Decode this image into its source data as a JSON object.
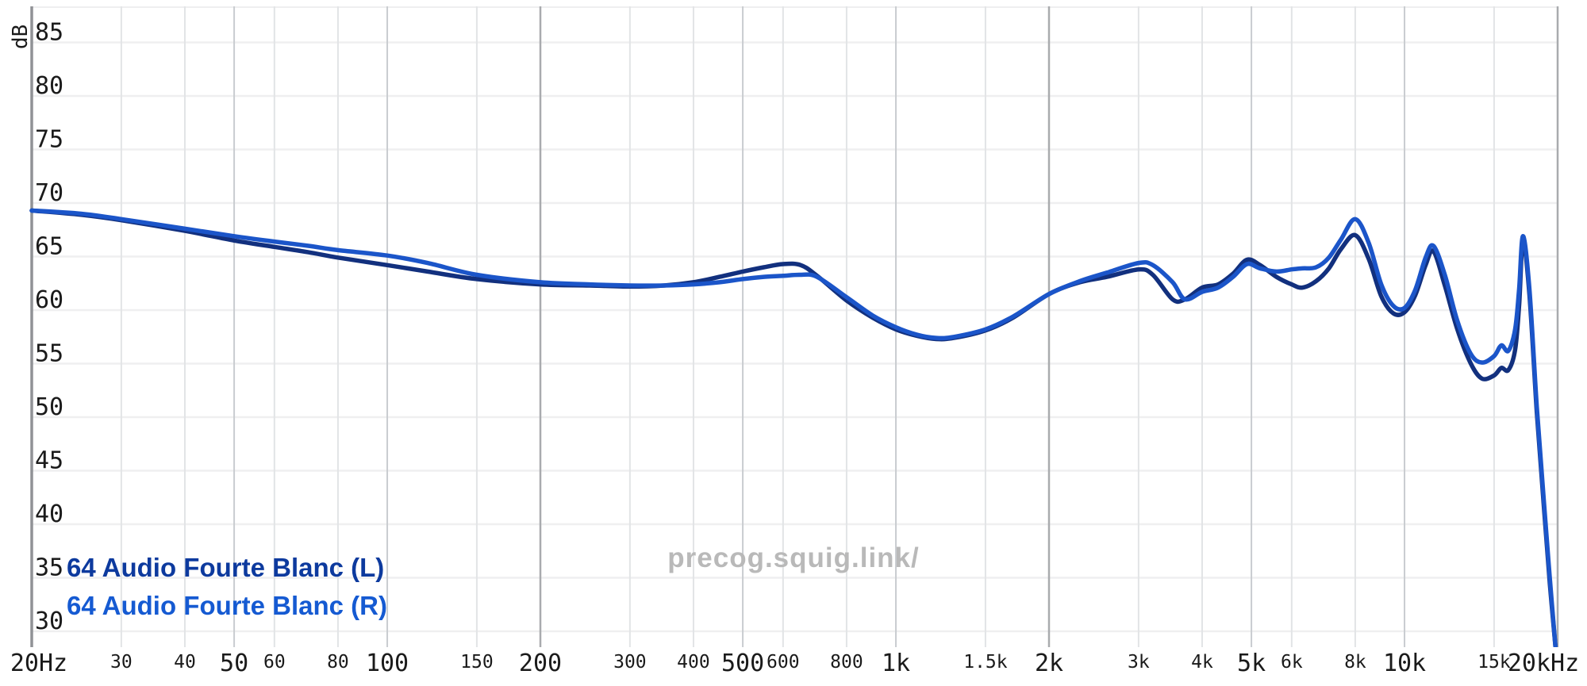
{
  "watermark": {
    "text": "precog.squig.link/",
    "color": "#b9b9b9"
  },
  "legend": {
    "items": [
      {
        "label": "64 Audio Fourte Blanc (L)",
        "color": "#0d3a9e"
      },
      {
        "label": "64 Audio Fourte Blanc (R)",
        "color": "#155ad2"
      }
    ]
  },
  "y_axis": {
    "unit": "dB",
    "ticks": [
      85,
      80,
      75,
      70,
      65,
      60,
      55,
      50,
      45,
      40,
      35,
      30
    ]
  },
  "x_axis": {
    "ticks": [
      {
        "f": 20,
        "label": "20Hz",
        "size": "major"
      },
      {
        "f": 30,
        "label": "30",
        "size": "minor"
      },
      {
        "f": 40,
        "label": "40",
        "size": "minor"
      },
      {
        "f": 50,
        "label": "50",
        "size": "major"
      },
      {
        "f": 60,
        "label": "60",
        "size": "minor"
      },
      {
        "f": 80,
        "label": "80",
        "size": "minor"
      },
      {
        "f": 100,
        "label": "100",
        "size": "major"
      },
      {
        "f": 150,
        "label": "150",
        "size": "minor"
      },
      {
        "f": 200,
        "label": "200",
        "size": "major"
      },
      {
        "f": 300,
        "label": "300",
        "size": "minor"
      },
      {
        "f": 400,
        "label": "400",
        "size": "minor"
      },
      {
        "f": 500,
        "label": "500",
        "size": "major"
      },
      {
        "f": 600,
        "label": "600",
        "size": "minor"
      },
      {
        "f": 800,
        "label": "800",
        "size": "minor"
      },
      {
        "f": 1000,
        "label": "1k",
        "size": "major"
      },
      {
        "f": 1500,
        "label": "1.5k",
        "size": "minor"
      },
      {
        "f": 2000,
        "label": "2k",
        "size": "major"
      },
      {
        "f": 3000,
        "label": "3k",
        "size": "minor"
      },
      {
        "f": 4000,
        "label": "4k",
        "size": "minor"
      },
      {
        "f": 5000,
        "label": "5k",
        "size": "major"
      },
      {
        "f": 6000,
        "label": "6k",
        "size": "minor"
      },
      {
        "f": 8000,
        "label": "8k",
        "size": "minor"
      },
      {
        "f": 10000,
        "label": "10k",
        "size": "major"
      },
      {
        "f": 15000,
        "label": "15k",
        "size": "minor"
      },
      {
        "f": 20000,
        "label": "20kHz",
        "size": "major"
      }
    ]
  },
  "chart_data": {
    "type": "line",
    "x_scale": "log",
    "x_range": [
      20,
      20000
    ],
    "y_unit": "dB",
    "y_tick_range": [
      30,
      85
    ],
    "grid": true,
    "legend_position": "bottom-left",
    "x": [
      20,
      25,
      30,
      40,
      50,
      60,
      70,
      80,
      100,
      120,
      150,
      200,
      250,
      300,
      350,
      400,
      450,
      500,
      550,
      600,
      650,
      700,
      800,
      900,
      1000,
      1100,
      1200,
      1300,
      1500,
      1700,
      2000,
      2300,
      2600,
      3000,
      3200,
      3500,
      3700,
      4000,
      4300,
      4600,
      4900,
      5200,
      5600,
      6000,
      6300,
      6700,
      7100,
      7500,
      8000,
      8500,
      9000,
      9500,
      10000,
      10500,
      11000,
      11400,
      12000,
      12700,
      13500,
      14200,
      15000,
      15500,
      16000,
      16500,
      16800,
      17100,
      17600,
      18200,
      18800,
      19300,
      19800
    ],
    "series": [
      {
        "name": "64 Audio Fourte Blanc (L)",
        "color": "#12307e",
        "values": [
          69.3,
          68.9,
          68.4,
          67.4,
          66.5,
          65.9,
          65.4,
          64.9,
          64.2,
          63.6,
          62.9,
          62.4,
          62.3,
          62.2,
          62.3,
          62.6,
          63.1,
          63.6,
          64.0,
          64.3,
          64.2,
          63.2,
          60.9,
          59.3,
          58.2,
          57.6,
          57.3,
          57.4,
          58.1,
          59.3,
          61.5,
          62.6,
          63.1,
          63.8,
          63.3,
          61.0,
          61.0,
          62.1,
          62.4,
          63.4,
          64.7,
          64.2,
          63.1,
          62.4,
          62.1,
          62.7,
          63.9,
          65.7,
          67.0,
          64.8,
          61.3,
          59.7,
          59.8,
          61.4,
          64.2,
          65.5,
          62.3,
          58.2,
          55.0,
          53.6,
          53.9,
          54.6,
          54.4,
          56.3,
          60.5,
          66.4,
          61.5,
          50.5,
          41.5,
          34.5,
          28.6
        ]
      },
      {
        "name": "64 Audio Fourte Blanc (R)",
        "color": "#1b55c9",
        "values": [
          69.3,
          69.0,
          68.5,
          67.6,
          66.9,
          66.4,
          66.0,
          65.6,
          65.1,
          64.4,
          63.3,
          62.6,
          62.4,
          62.3,
          62.3,
          62.4,
          62.6,
          62.9,
          63.1,
          63.2,
          63.3,
          63.1,
          61.2,
          59.5,
          58.4,
          57.7,
          57.4,
          57.5,
          58.2,
          59.4,
          61.5,
          62.7,
          63.5,
          64.4,
          64.2,
          62.6,
          61.0,
          61.7,
          62.1,
          63.1,
          64.3,
          63.9,
          63.6,
          63.8,
          63.9,
          64.0,
          64.9,
          66.6,
          68.5,
          66.3,
          62.4,
          60.4,
          60.2,
          61.9,
          64.9,
          66.0,
          63.3,
          59.0,
          55.9,
          55.1,
          55.7,
          56.7,
          56.2,
          58.2,
          62.0,
          66.9,
          62.0,
          51.0,
          42.0,
          35.0,
          28.6
        ]
      }
    ],
    "grid_style": {
      "dark_vertical_at": [
        200,
        2000,
        20000
      ],
      "medium_vertical_at": [
        50,
        100,
        500,
        1000,
        5000,
        10000
      ],
      "axis_left_at": 20
    }
  },
  "colors": {
    "grid_light": "#e2e4e6",
    "grid_medium": "#c9ccd0",
    "grid_dark": "#a9abae",
    "grid_horizontal": "#efeff0",
    "axis_line": "#909296",
    "tick_text": "#1a1a1a"
  }
}
